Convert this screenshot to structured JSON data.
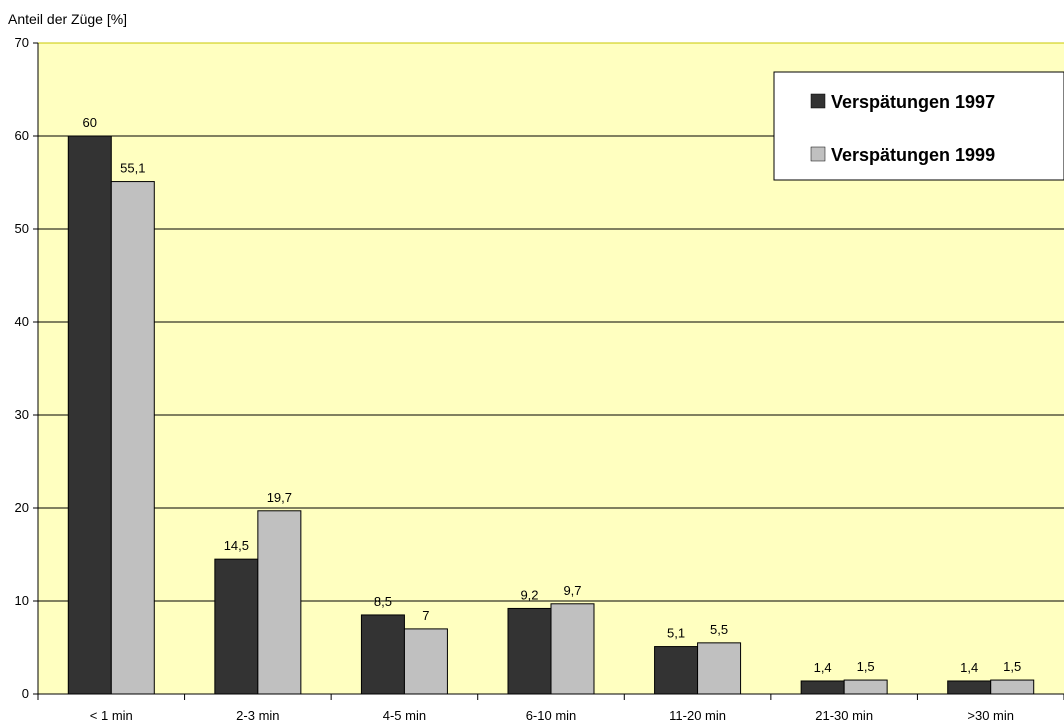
{
  "chart_data": {
    "type": "bar",
    "ylabel": "Anteil der Züge [%]",
    "ylim": [
      0,
      70
    ],
    "yticks": [
      0,
      10,
      20,
      30,
      40,
      50,
      60,
      70
    ],
    "categories": [
      "< 1 min",
      "2-3 min",
      "4-5 min",
      "6-10 min",
      "11-20 min",
      "21-30 min",
      ">30 min"
    ],
    "series": [
      {
        "name": "Verspätungen 1997",
        "color": "#333333",
        "values": [
          60,
          14.5,
          8.5,
          9.2,
          5.1,
          1.4,
          1.4
        ],
        "labels": [
          "60",
          "14,5",
          "8,5",
          "9,2",
          "5,1",
          "1,4",
          "1,4"
        ]
      },
      {
        "name": "Verspätungen 1999",
        "color": "#c0c0c0",
        "values": [
          55.1,
          19.7,
          7,
          9.7,
          5.5,
          1.5,
          1.5
        ],
        "labels": [
          "55,1",
          "19,7",
          "7",
          "9,7",
          "5,5",
          "1,5",
          "1,5"
        ]
      }
    ],
    "grid": true,
    "legend": "top-right",
    "plot_background": "#ffffc0"
  }
}
